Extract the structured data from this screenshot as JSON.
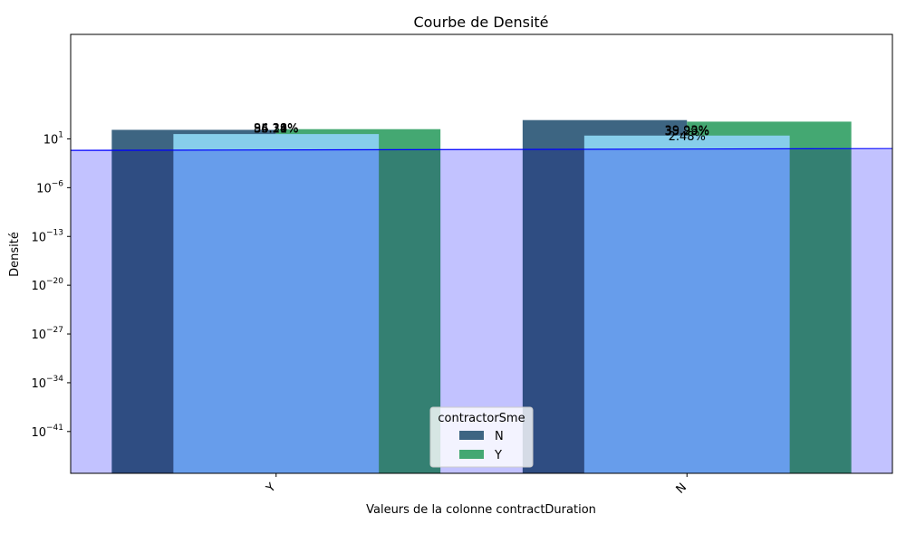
{
  "chart_data": {
    "type": "bar",
    "title": "Courbe de Densité",
    "xlabel": "Valeurs de la colonne contractDuration",
    "ylabel": "Densité",
    "yscale": "log",
    "ylim_exp": [
      -47,
      16
    ],
    "yticks": [
      {
        "base": "10",
        "exp": "1",
        "value": 10
      },
      {
        "base": "10",
        "exp": "−6",
        "value": 1e-06
      },
      {
        "base": "10",
        "exp": "−13",
        "value": 1e-13
      },
      {
        "base": "10",
        "exp": "−20",
        "value": 1e-20
      },
      {
        "base": "10",
        "exp": "−27",
        "value": 1e-27
      },
      {
        "base": "10",
        "exp": "−34",
        "value": 1e-34
      },
      {
        "base": "10",
        "exp": "−41",
        "value": 1e-41
      }
    ],
    "categories": [
      "Y",
      "N"
    ],
    "series": [
      {
        "name": "N",
        "color": "#3d6582",
        "values": [
          200,
          5000
        ]
      },
      {
        "name": "Y",
        "color": "#44a872",
        "values": [
          250,
          3000
        ]
      }
    ],
    "overlay_bars": {
      "color": "#87ceeb",
      "values": [
        50,
        30
      ]
    },
    "density_curve": {
      "line_color": "#0000ff",
      "fill_color": "#bfbfff",
      "value": 0.3
    },
    "data_labels": [
      {
        "category": "Y",
        "text": "94.38%",
        "y": 260
      },
      {
        "category": "Y",
        "text": "84.29%",
        "y": 245
      },
      {
        "category": "Y",
        "text": "56.21%",
        "y": 230
      },
      {
        "category": "Y",
        "text": "35.14%",
        "y": 215
      },
      {
        "category": "N",
        "text": "39.93%",
        "y": 120
      },
      {
        "category": "N",
        "text": "35.29%",
        "y": 95
      },
      {
        "category": "N",
        "text": "2.48%",
        "y": 18
      }
    ],
    "legend": {
      "title": "contractorSme",
      "position": "lower-center"
    },
    "grid": false
  }
}
